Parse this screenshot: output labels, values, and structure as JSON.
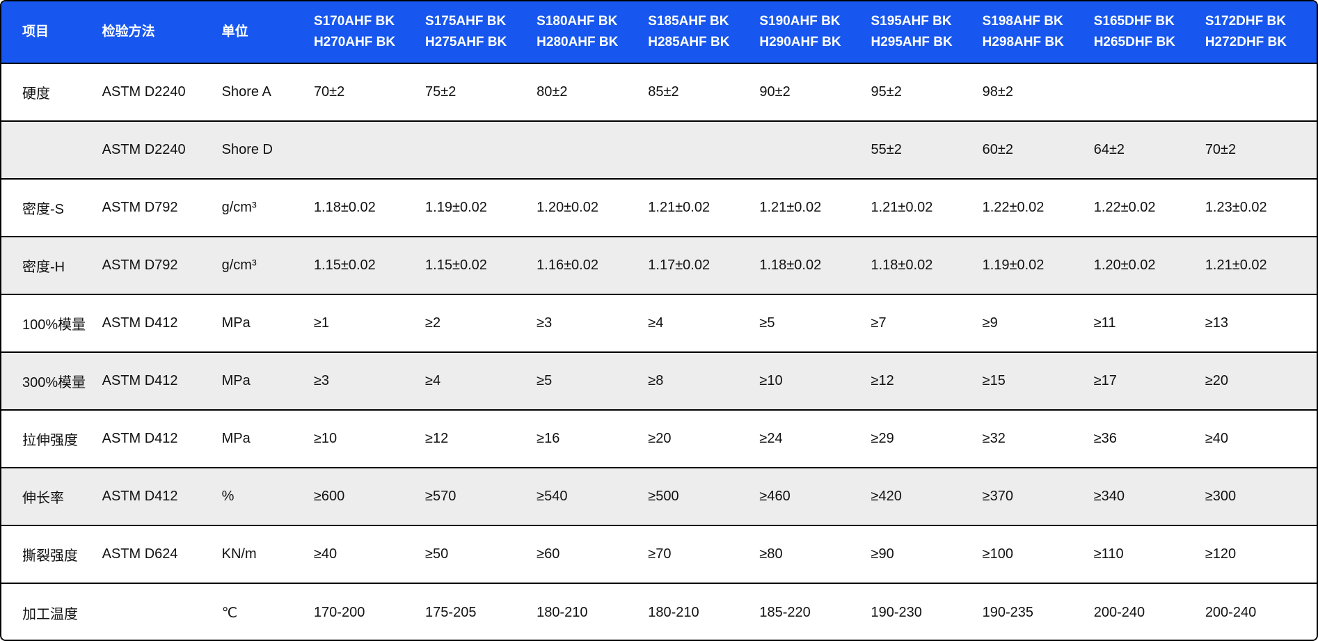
{
  "colors": {
    "header_bg": "#1757EF",
    "header_text": "#FFFFFF",
    "row_alt_bg": "#EDEDED",
    "border": "#000000",
    "text": "#121212"
  },
  "chart_data": {
    "type": "table",
    "header": {
      "item": "项目",
      "method": "检验方法",
      "unit": "单位",
      "products": [
        {
          "line1": "S170AHF BK",
          "line2": "H270AHF BK"
        },
        {
          "line1": "S175AHF BK",
          "line2": "H275AHF BK"
        },
        {
          "line1": "S180AHF BK",
          "line2": "H280AHF BK"
        },
        {
          "line1": "S185AHF BK",
          "line2": "H285AHF BK"
        },
        {
          "line1": "S190AHF BK",
          "line2": "H290AHF BK"
        },
        {
          "line1": "S195AHF BK",
          "line2": "H295AHF BK"
        },
        {
          "line1": "S198AHF BK",
          "line2": "H298AHF BK"
        },
        {
          "line1": "S165DHF BK",
          "line2": "H265DHF BK"
        },
        {
          "line1": "S172DHF BK",
          "line2": "H272DHF BK"
        }
      ]
    },
    "rows": [
      {
        "item": "硬度",
        "method": "ASTM D2240",
        "unit": "Shore A",
        "values": [
          "70±2",
          "75±2",
          "80±2",
          "85±2",
          "90±2",
          "95±2",
          "98±2",
          "",
          ""
        ]
      },
      {
        "item": "",
        "method": "ASTM D2240",
        "unit": "Shore D",
        "values": [
          "",
          "",
          "",
          "",
          "",
          "55±2",
          "60±2",
          "64±2",
          "70±2"
        ]
      },
      {
        "item": "密度-S",
        "method": "ASTM D792",
        "unit": "g/cm³",
        "values": [
          "1.18±0.02",
          "1.19±0.02",
          "1.20±0.02",
          "1.21±0.02",
          "1.21±0.02",
          "1.21±0.02",
          "1.22±0.02",
          "1.22±0.02",
          "1.23±0.02"
        ]
      },
      {
        "item": "密度-H",
        "method": "ASTM D792",
        "unit": "g/cm³",
        "values": [
          "1.15±0.02",
          "1.15±0.02",
          "1.16±0.02",
          "1.17±0.02",
          "1.18±0.02",
          "1.18±0.02",
          "1.19±0.02",
          "1.20±0.02",
          "1.21±0.02"
        ]
      },
      {
        "item": "100%模量",
        "method": "ASTM D412",
        "unit": "MPa",
        "values": [
          "≥1",
          "≥2",
          "≥3",
          "≥4",
          "≥5",
          "≥7",
          "≥9",
          "≥11",
          "≥13"
        ]
      },
      {
        "item": "300%模量",
        "method": "ASTM D412",
        "unit": "MPa",
        "values": [
          "≥3",
          "≥4",
          "≥5",
          "≥8",
          "≥10",
          "≥12",
          "≥15",
          "≥17",
          "≥20"
        ]
      },
      {
        "item": "拉伸强度",
        "method": "ASTM D412",
        "unit": "MPa",
        "values": [
          "≥10",
          "≥12",
          "≥16",
          "≥20",
          "≥24",
          "≥29",
          "≥32",
          "≥36",
          "≥40"
        ]
      },
      {
        "item": "伸长率",
        "method": "ASTM D412",
        "unit": "%",
        "values": [
          "≥600",
          "≥570",
          "≥540",
          "≥500",
          "≥460",
          "≥420",
          "≥370",
          "≥340",
          "≥300"
        ]
      },
      {
        "item": "撕裂强度",
        "method": "ASTM D624",
        "unit": "KN/m",
        "values": [
          "≥40",
          "≥50",
          "≥60",
          "≥70",
          "≥80",
          "≥90",
          "≥100",
          "≥110",
          "≥120"
        ]
      },
      {
        "item": "加工温度",
        "method": "",
        "unit": "℃",
        "values": [
          "170-200",
          "175-205",
          "180-210",
          "180-210",
          "185-220",
          "190-230",
          "190-235",
          "200-240",
          "200-240"
        ]
      }
    ]
  }
}
